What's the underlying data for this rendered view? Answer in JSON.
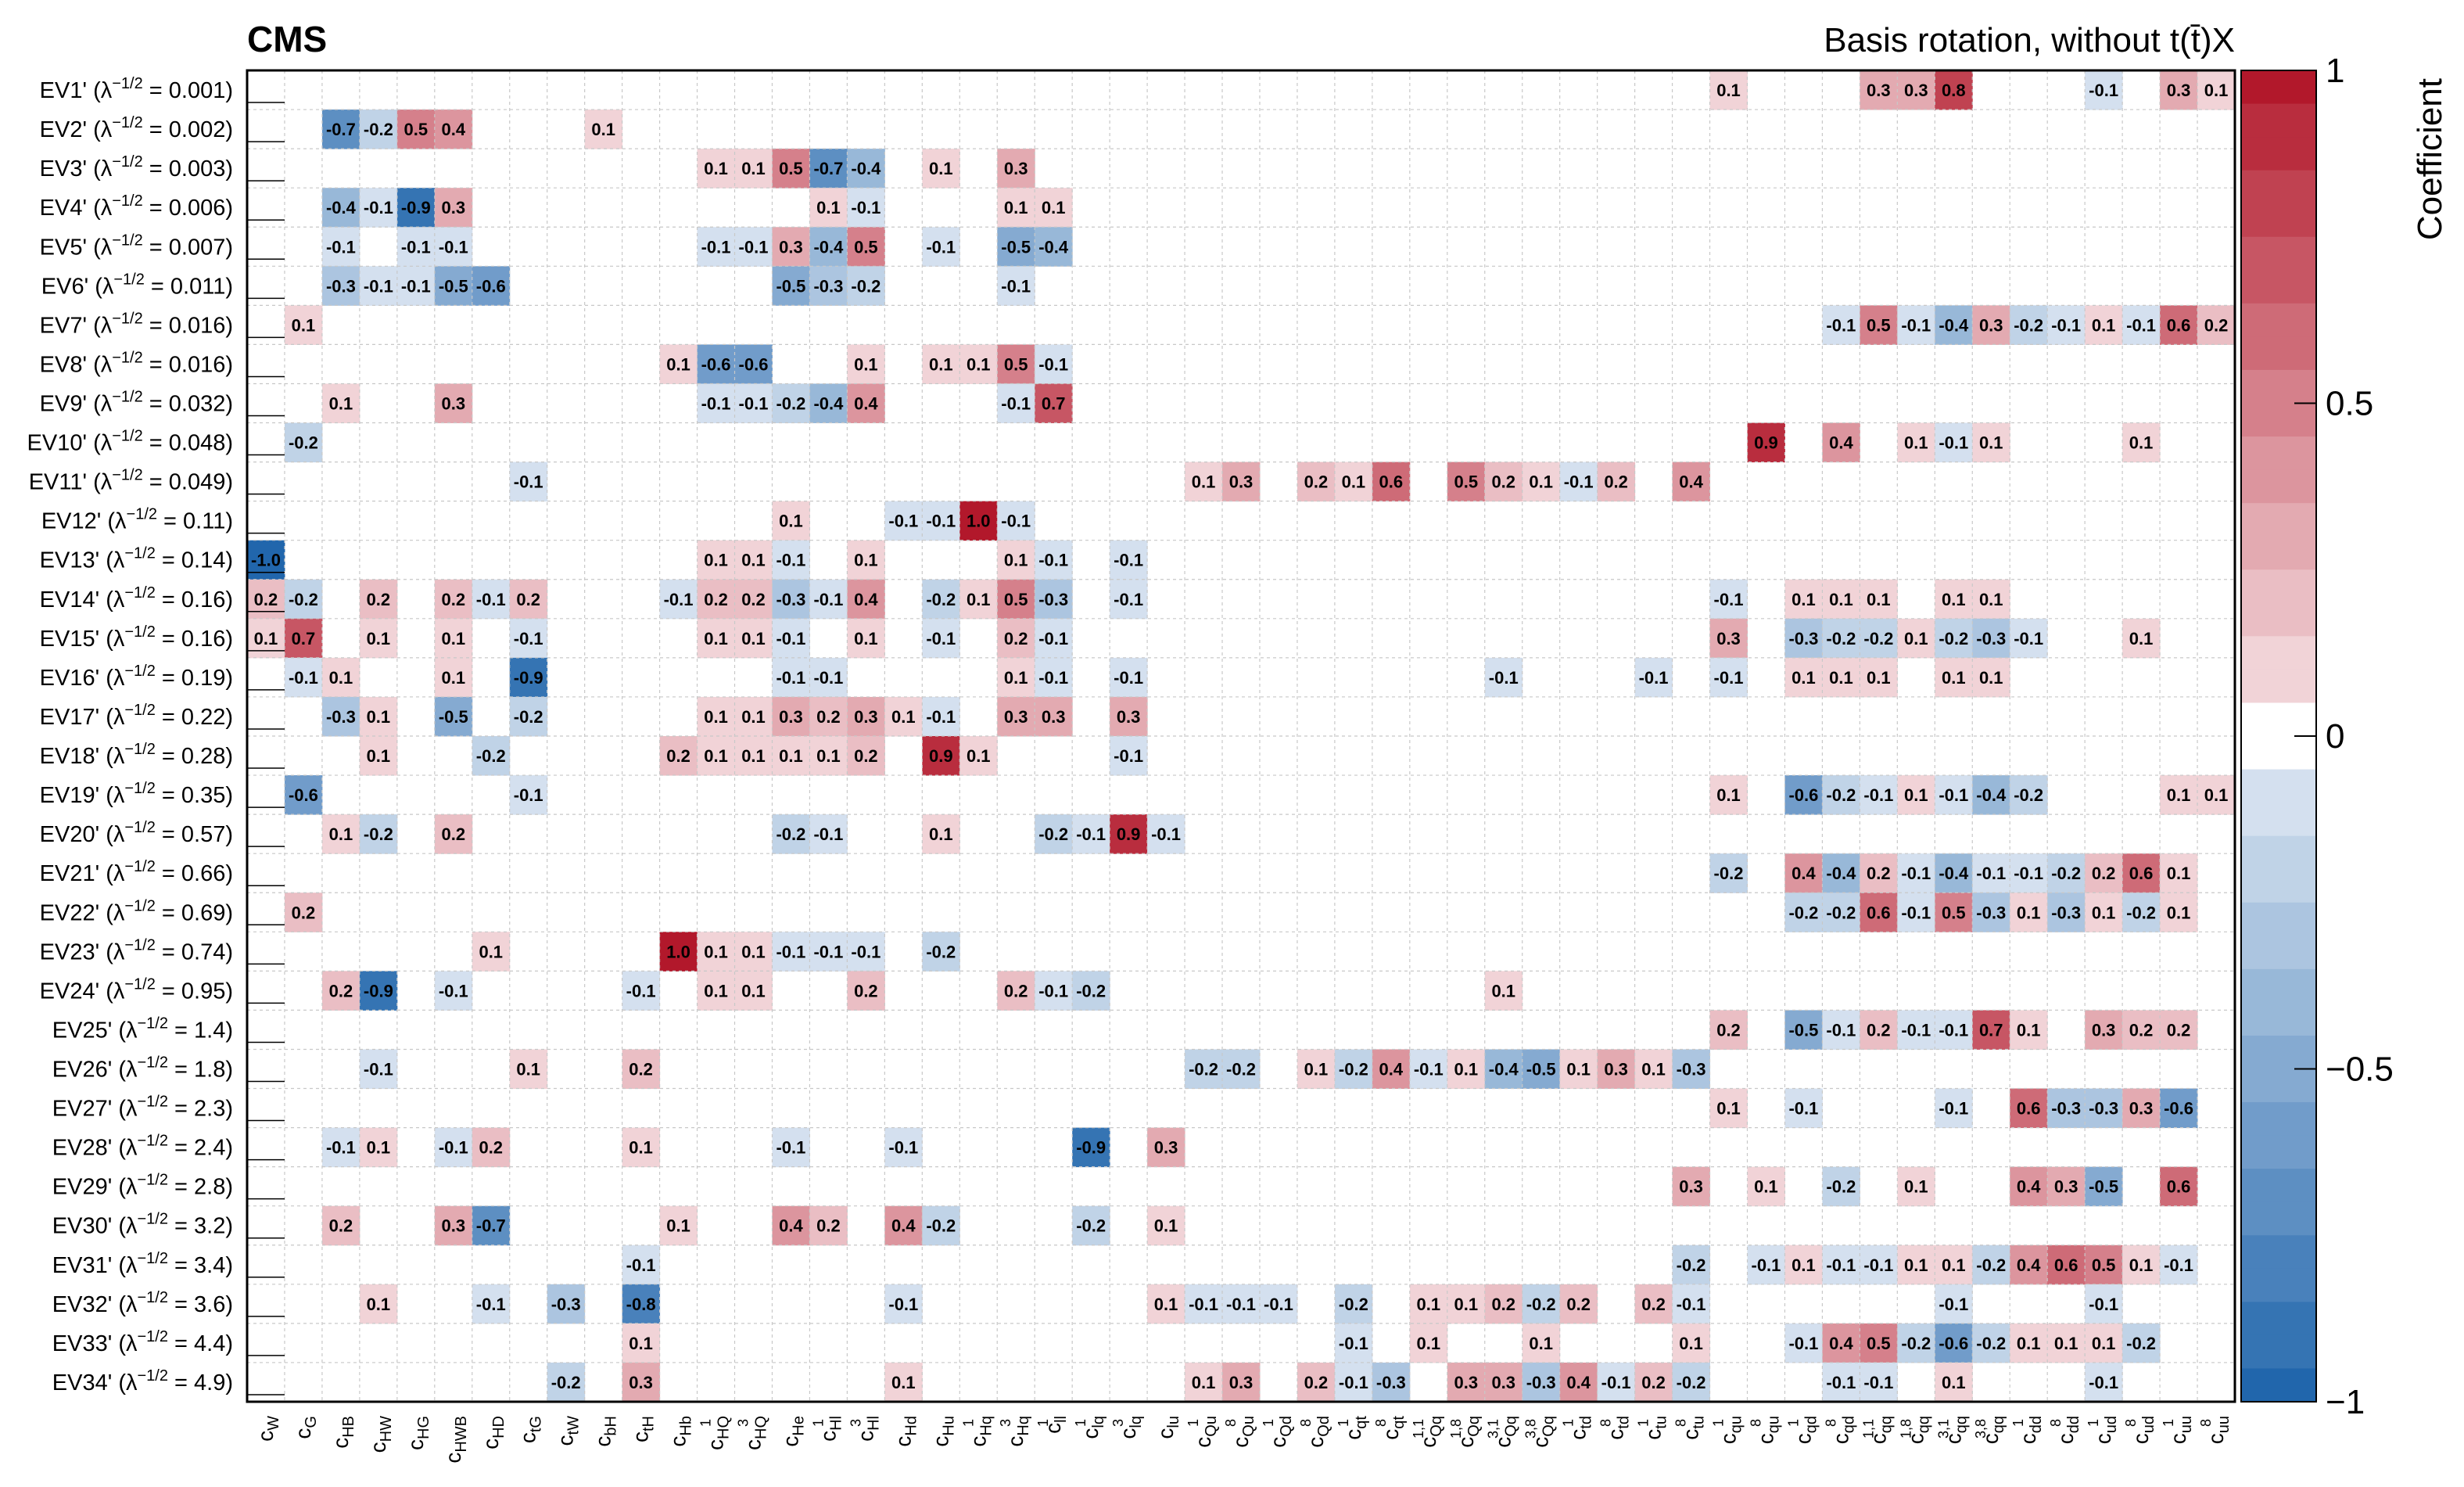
{
  "chart_data": {
    "type": "heatmap",
    "title": "CMS",
    "subtitle": "Basis rotation, without t(t̄)X",
    "colorbar_label": "Coefficient",
    "zlim": [
      -1,
      1
    ],
    "z_ticks": [
      "1",
      "0.5",
      "0",
      "−0.5",
      "−1"
    ],
    "colors": {
      "positive": "#b2182b",
      "negative": "#2166ac",
      "neutral": "#ffffff"
    },
    "columns": [
      {
        "b": "c",
        "s": "W"
      },
      {
        "b": "c",
        "s": "G"
      },
      {
        "b": "c",
        "s": "HB"
      },
      {
        "b": "c",
        "s": "HW"
      },
      {
        "b": "c",
        "s": "HG"
      },
      {
        "b": "c",
        "s": "HWB"
      },
      {
        "b": "c",
        "s": "HD"
      },
      {
        "b": "c",
        "s": "tG"
      },
      {
        "b": "c",
        "s": "tW"
      },
      {
        "b": "c",
        "s": "bH"
      },
      {
        "b": "c",
        "s": "tH"
      },
      {
        "b": "c",
        "s": "Hb"
      },
      {
        "b": "c",
        "s": "HQ",
        "p": "1"
      },
      {
        "b": "c",
        "s": "HQ",
        "p": "3"
      },
      {
        "b": "c",
        "s": "He"
      },
      {
        "b": "c",
        "s": "Hl",
        "p": "1"
      },
      {
        "b": "c",
        "s": "Hl",
        "p": "3"
      },
      {
        "b": "c",
        "s": "Hd"
      },
      {
        "b": "c",
        "s": "Hu"
      },
      {
        "b": "c",
        "s": "Hq",
        "p": "1"
      },
      {
        "b": "c",
        "s": "Hq",
        "p": "3"
      },
      {
        "b": "c",
        "s": "ll",
        "p": "1"
      },
      {
        "b": "c",
        "s": "lq",
        "p": "1"
      },
      {
        "b": "c",
        "s": "lq",
        "p": "3"
      },
      {
        "b": "c",
        "s": "lu"
      },
      {
        "b": "c",
        "s": "Qu",
        "p": "1"
      },
      {
        "b": "c",
        "s": "Qu",
        "p": "8"
      },
      {
        "b": "c",
        "s": "Qd",
        "p": "1"
      },
      {
        "b": "c",
        "s": "Qd",
        "p": "8"
      },
      {
        "b": "c",
        "s": "qt",
        "p": "1"
      },
      {
        "b": "c",
        "s": "qt",
        "p": "8"
      },
      {
        "b": "c",
        "s": "Qq",
        "p": "1,1"
      },
      {
        "b": "c",
        "s": "Qq",
        "p": "1,8"
      },
      {
        "b": "c",
        "s": "Qq",
        "p": "3,1"
      },
      {
        "b": "c",
        "s": "Qq",
        "p": "3,8"
      },
      {
        "b": "c",
        "s": "td",
        "p": "1"
      },
      {
        "b": "c",
        "s": "td",
        "p": "8"
      },
      {
        "b": "c",
        "s": "tu",
        "p": "1"
      },
      {
        "b": "c",
        "s": "tu",
        "p": "8"
      },
      {
        "b": "c",
        "s": "qu",
        "p": "1"
      },
      {
        "b": "c",
        "s": "qu",
        "p": "8"
      },
      {
        "b": "c",
        "s": "qd",
        "p": "1"
      },
      {
        "b": "c",
        "s": "qd",
        "p": "8"
      },
      {
        "b": "c",
        "s": "qq",
        "p": "1,1"
      },
      {
        "b": "c",
        "s": "qq",
        "p": "1,8"
      },
      {
        "b": "c",
        "s": "qq",
        "p": "3,1"
      },
      {
        "b": "c",
        "s": "qq",
        "p": "3,8"
      },
      {
        "b": "c",
        "s": "dd",
        "p": "1"
      },
      {
        "b": "c",
        "s": "dd",
        "p": "8"
      },
      {
        "b": "c",
        "s": "ud",
        "p": "1"
      },
      {
        "b": "c",
        "s": "ud",
        "p": "8"
      },
      {
        "b": "c",
        "s": "uu",
        "p": "1"
      },
      {
        "b": "c",
        "s": "uu",
        "p": "8"
      }
    ],
    "rows": [
      {
        "ev": "EV1'",
        "lam": "0.001",
        "cells": {
          "39": 0.1,
          "43": 0.3,
          "44": 0.3,
          "45": 0.8,
          "49": -0.1,
          "51": 0.3,
          "52": 0.1
        }
      },
      {
        "ev": "EV2'",
        "lam": "0.002",
        "cells": {
          "2": -0.7,
          "3": -0.2,
          "4": 0.5,
          "5": 0.4,
          "9": 0.1
        }
      },
      {
        "ev": "EV3'",
        "lam": "0.003",
        "cells": {
          "12": 0.1,
          "13": 0.1,
          "14": 0.5,
          "15": -0.7,
          "16": -0.4,
          "18": 0.1,
          "20": 0.3
        }
      },
      {
        "ev": "EV4'",
        "lam": "0.006",
        "cells": {
          "2": -0.4,
          "3": -0.1,
          "4": -0.9,
          "5": 0.3,
          "15": 0.1,
          "16": -0.1,
          "20": 0.1,
          "21": 0.1
        }
      },
      {
        "ev": "EV5'",
        "lam": "0.007",
        "cells": {
          "2": -0.1,
          "4": -0.1,
          "5": -0.1,
          "12": -0.1,
          "13": -0.1,
          "14": 0.3,
          "15": -0.4,
          "16": 0.5,
          "18": -0.1,
          "20": -0.5,
          "21": -0.4
        }
      },
      {
        "ev": "EV6'",
        "lam": "0.011",
        "cells": {
          "2": -0.3,
          "3": -0.1,
          "4": -0.1,
          "5": -0.5,
          "6": -0.6,
          "14": -0.5,
          "15": -0.3,
          "16": -0.2,
          "20": -0.1
        }
      },
      {
        "ev": "EV7'",
        "lam": "0.016",
        "cells": {
          "1": 0.1,
          "42": -0.1,
          "43": 0.5,
          "44": -0.1,
          "45": -0.4,
          "46": 0.3,
          "47": -0.2,
          "48": -0.1,
          "49": 0.1,
          "50": -0.1,
          "51": 0.6,
          "52": 0.2
        }
      },
      {
        "ev": "EV8'",
        "lam": "0.016",
        "cells": {
          "11": 0.1,
          "12": -0.6,
          "13": -0.6,
          "16": 0.1,
          "18": 0.1,
          "19": 0.1,
          "20": 0.5,
          "21": -0.1
        }
      },
      {
        "ev": "EV9'",
        "lam": "0.032",
        "cells": {
          "2": 0.1,
          "5": 0.3,
          "12": -0.1,
          "13": -0.1,
          "14": -0.2,
          "15": -0.4,
          "16": 0.4,
          "20": -0.1,
          "21": 0.7
        }
      },
      {
        "ev": "EV10'",
        "lam": "0.048",
        "cells": {
          "1": -0.2,
          "40": 0.9,
          "42": 0.4,
          "44": 0.1,
          "45": -0.1,
          "46": 0.1,
          "50": 0.1
        }
      },
      {
        "ev": "EV11'",
        "lam": "0.049",
        "cells": {
          "7": -0.1,
          "25": 0.1,
          "26": 0.3,
          "28": 0.2,
          "29": 0.1,
          "30": 0.6,
          "32": 0.5,
          "33": 0.2,
          "34": 0.1,
          "35": -0.1,
          "36": 0.2,
          "38": 0.4
        }
      },
      {
        "ev": "EV12'",
        "lam": "0.11",
        "cells": {
          "14": 0.1,
          "17": -0.1,
          "18": -0.1,
          "19": 1.0,
          "20": -0.1
        }
      },
      {
        "ev": "EV13'",
        "lam": "0.14",
        "cells": {
          "0": -1.0,
          "12": 0.1,
          "13": 0.1,
          "14": -0.1,
          "16": 0.1,
          "20": 0.1,
          "21": -0.1,
          "23": -0.1
        }
      },
      {
        "ev": "EV14'",
        "lam": "0.16",
        "cells": {
          "0": 0.2,
          "1": -0.2,
          "3": 0.2,
          "5": 0.2,
          "6": -0.1,
          "7": 0.2,
          "11": -0.1,
          "12": 0.2,
          "13": 0.2,
          "14": -0.3,
          "15": -0.1,
          "16": 0.4,
          "18": -0.2,
          "19": 0.1,
          "20": 0.5,
          "21": -0.3,
          "23": -0.1,
          "39": -0.1,
          "41": 0.1,
          "42": 0.1,
          "43": 0.1,
          "45": 0.1,
          "46": 0.1
        }
      },
      {
        "ev": "EV15'",
        "lam": "0.16",
        "cells": {
          "0": 0.1,
          "1": 0.7,
          "3": 0.1,
          "5": 0.1,
          "7": -0.1,
          "12": 0.1,
          "13": 0.1,
          "14": -0.1,
          "16": 0.1,
          "18": -0.1,
          "20": 0.2,
          "21": -0.1,
          "39": 0.3,
          "41": -0.3,
          "42": -0.2,
          "43": -0.2,
          "44": 0.1,
          "45": -0.2,
          "46": -0.3,
          "47": -0.1,
          "50": 0.1
        }
      },
      {
        "ev": "EV16'",
        "lam": "0.19",
        "cells": {
          "1": -0.1,
          "2": 0.1,
          "5": 0.1,
          "7": -0.9,
          "14": -0.1,
          "15": -0.1,
          "20": 0.1,
          "21": -0.1,
          "23": -0.1,
          "33": -0.1,
          "37": -0.1,
          "39": -0.1,
          "41": 0.1,
          "42": 0.1,
          "43": 0.1,
          "45": 0.1,
          "46": 0.1
        }
      },
      {
        "ev": "EV17'",
        "lam": "0.22",
        "cells": {
          "2": -0.3,
          "3": 0.1,
          "5": -0.5,
          "7": -0.2,
          "12": 0.1,
          "13": 0.1,
          "14": 0.3,
          "15": 0.2,
          "16": 0.3,
          "17": 0.1,
          "18": -0.1,
          "20": 0.3,
          "21": 0.3,
          "23": 0.3
        }
      },
      {
        "ev": "EV18'",
        "lam": "0.28",
        "cells": {
          "3": 0.1,
          "6": -0.2,
          "11": 0.2,
          "12": 0.1,
          "13": 0.1,
          "14": 0.1,
          "15": 0.1,
          "16": 0.2,
          "18": 0.9,
          "19": 0.1,
          "23": -0.1
        }
      },
      {
        "ev": "EV19'",
        "lam": "0.35",
        "cells": {
          "1": -0.6,
          "7": -0.1,
          "39": 0.1,
          "41": -0.6,
          "42": -0.2,
          "43": -0.1,
          "44": 0.1,
          "45": -0.1,
          "46": -0.4,
          "47": -0.2,
          "51": 0.1,
          "52": 0.1
        }
      },
      {
        "ev": "EV20'",
        "lam": "0.57",
        "cells": {
          "2": 0.1,
          "3": -0.2,
          "5": 0.2,
          "14": -0.2,
          "15": -0.1,
          "18": 0.1,
          "21": -0.2,
          "22": -0.1,
          "23": 0.9,
          "24": -0.1
        }
      },
      {
        "ev": "EV21'",
        "lam": "0.66",
        "cells": {
          "39": -0.2,
          "41": 0.4,
          "42": -0.4,
          "43": 0.2,
          "44": -0.1,
          "45": -0.4,
          "46": -0.1,
          "47": -0.1,
          "48": -0.2,
          "49": 0.2,
          "50": 0.6,
          "51": 0.1
        }
      },
      {
        "ev": "EV22'",
        "lam": "0.69",
        "cells": {
          "1": 0.2,
          "41": -0.2,
          "42": -0.2,
          "43": 0.6,
          "44": -0.1,
          "45": 0.5,
          "46": -0.3,
          "47": 0.1,
          "48": -0.3,
          "49": 0.1,
          "50": -0.2,
          "51": 0.1
        }
      },
      {
        "ev": "EV23'",
        "lam": "0.74",
        "cells": {
          "6": 0.1,
          "11": 1.0,
          "12": 0.1,
          "13": 0.1,
          "14": -0.1,
          "15": -0.1,
          "16": -0.1,
          "18": -0.2
        }
      },
      {
        "ev": "EV24'",
        "lam": "0.95",
        "cells": {
          "2": 0.2,
          "3": -0.9,
          "5": -0.1,
          "10": -0.1,
          "12": 0.1,
          "13": 0.1,
          "16": 0.2,
          "20": 0.2,
          "21": -0.1,
          "22": -0.2,
          "33": 0.1
        }
      },
      {
        "ev": "EV25'",
        "lam": "1.4",
        "cells": {
          "39": 0.2,
          "41": -0.5,
          "42": -0.1,
          "43": 0.2,
          "44": -0.1,
          "45": -0.1,
          "46": 0.7,
          "47": 0.1,
          "49": 0.3,
          "50": 0.2,
          "51": 0.2
        }
      },
      {
        "ev": "EV26'",
        "lam": "1.8",
        "cells": {
          "3": -0.1,
          "7": 0.1,
          "10": 0.2,
          "25": -0.2,
          "26": -0.2,
          "28": 0.1,
          "29": -0.2,
          "30": 0.4,
          "31": -0.1,
          "32": 0.1,
          "33": -0.4,
          "34": -0.5,
          "35": 0.1,
          "36": 0.3,
          "37": 0.1,
          "38": -0.3
        }
      },
      {
        "ev": "EV27'",
        "lam": "2.3",
        "cells": {
          "39": 0.1,
          "41": -0.1,
          "45": -0.1,
          "47": 0.6,
          "48": -0.3,
          "49": -0.3,
          "50": 0.3,
          "51": -0.6
        }
      },
      {
        "ev": "EV28'",
        "lam": "2.4",
        "cells": {
          "2": -0.1,
          "3": 0.1,
          "5": -0.1,
          "6": 0.2,
          "10": 0.1,
          "14": -0.1,
          "17": -0.1,
          "22": -0.9,
          "24": 0.3
        }
      },
      {
        "ev": "EV29'",
        "lam": "2.8",
        "cells": {
          "38": 0.3,
          "40": 0.1,
          "42": -0.2,
          "44": 0.1,
          "47": 0.4,
          "48": 0.3,
          "49": -0.5,
          "51": 0.6
        }
      },
      {
        "ev": "EV30'",
        "lam": "3.2",
        "cells": {
          "2": 0.2,
          "5": 0.3,
          "6": -0.7,
          "11": 0.1,
          "14": 0.4,
          "15": 0.2,
          "17": 0.4,
          "18": -0.2,
          "22": -0.2,
          "24": 0.1
        }
      },
      {
        "ev": "EV31'",
        "lam": "3.4",
        "cells": {
          "10": -0.1,
          "38": -0.2,
          "40": -0.1,
          "41": 0.1,
          "42": -0.1,
          "43": -0.1,
          "44": 0.1,
          "45": 0.1,
          "46": -0.2,
          "47": 0.4,
          "48": 0.6,
          "49": 0.5,
          "50": 0.1,
          "51": -0.1
        }
      },
      {
        "ev": "EV32'",
        "lam": "3.6",
        "cells": {
          "3": 0.1,
          "6": -0.1,
          "8": -0.3,
          "10": -0.8,
          "17": -0.1,
          "24": 0.1,
          "25": -0.1,
          "26": -0.1,
          "27": -0.1,
          "29": -0.2,
          "31": 0.1,
          "32": 0.1,
          "33": 0.2,
          "34": -0.2,
          "35": 0.2,
          "37": 0.2,
          "38": -0.1,
          "45": -0.1,
          "49": -0.1
        }
      },
      {
        "ev": "EV33'",
        "lam": "4.4",
        "cells": {
          "10": 0.1,
          "29": -0.1,
          "31": 0.1,
          "34": 0.1,
          "38": 0.1,
          "41": -0.1,
          "42": 0.4,
          "43": 0.5,
          "44": -0.2,
          "45": -0.6,
          "46": -0.2,
          "47": 0.1,
          "48": 0.1,
          "49": 0.1,
          "50": -0.2
        }
      },
      {
        "ev": "EV34'",
        "lam": "4.9",
        "cells": {
          "8": -0.2,
          "10": 0.3,
          "17": 0.1,
          "25": 0.1,
          "26": 0.3,
          "28": 0.2,
          "29": -0.1,
          "30": -0.3,
          "32": 0.3,
          "33": 0.3,
          "34": -0.3,
          "35": 0.4,
          "36": -0.1,
          "37": 0.2,
          "38": -0.2,
          "42": -0.1,
          "43": -0.1,
          "45": 0.1,
          "49": -0.1
        }
      }
    ]
  }
}
